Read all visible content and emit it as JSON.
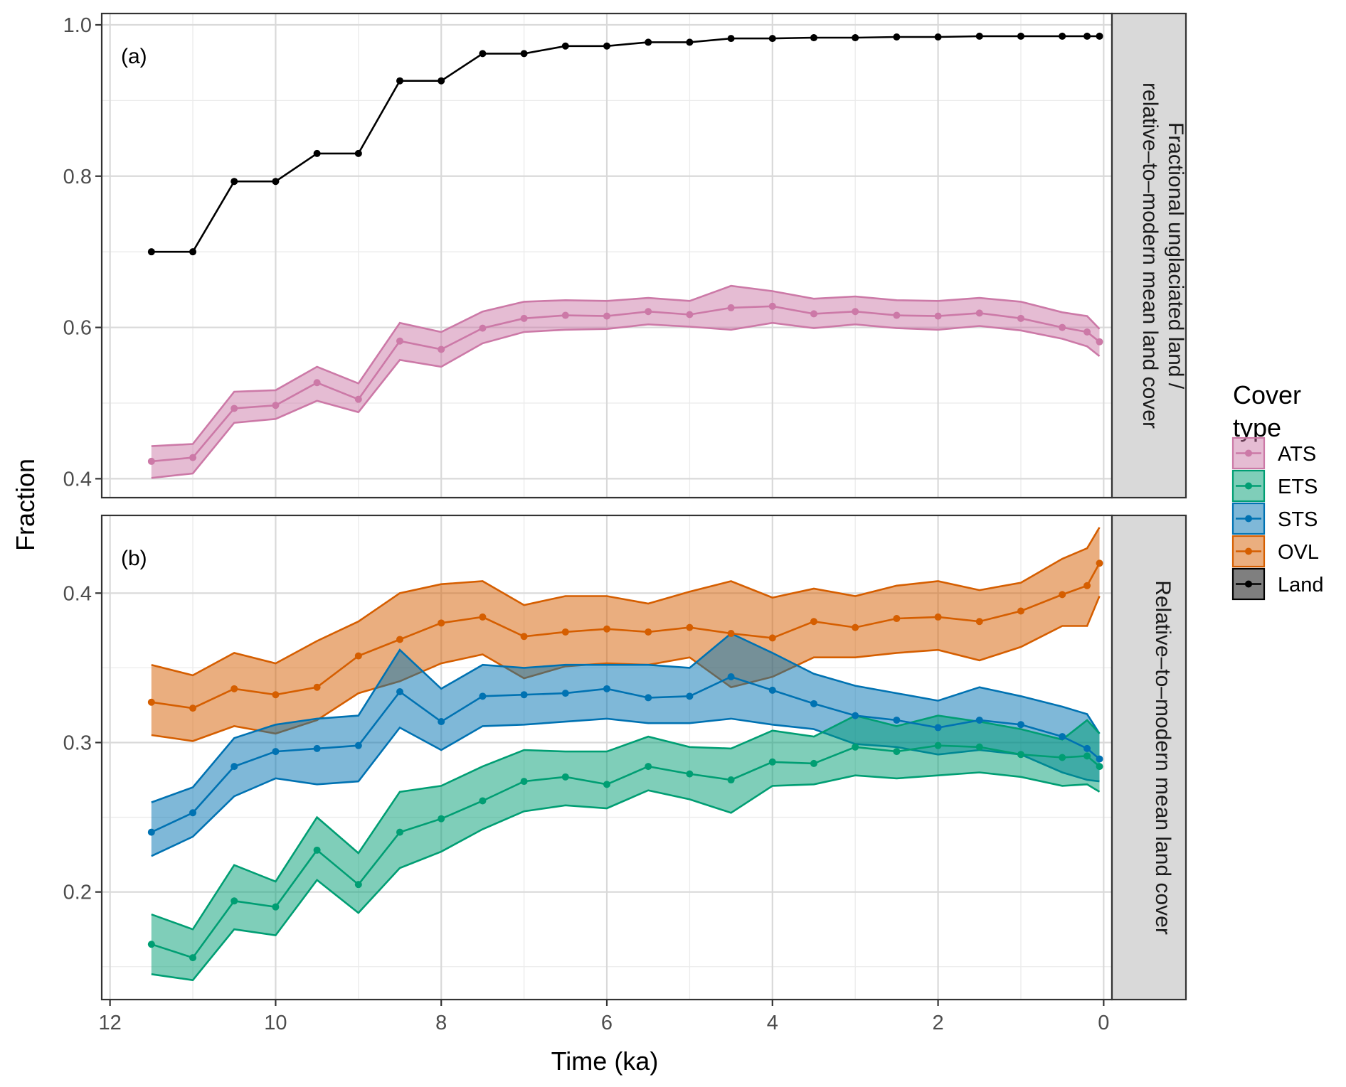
{
  "chart_data": {
    "type": "line",
    "xlabel": "Time (ka)",
    "ylabel": "Fraction",
    "x_ticks": [
      "12",
      "10",
      "8",
      "6",
      "4",
      "2",
      "0"
    ],
    "xlim": [
      12.1,
      -0.1
    ],
    "x_reversed": true,
    "grid": true,
    "legend": {
      "title_lines": [
        "Cover",
        "type"
      ],
      "placement": "right",
      "entries": [
        {
          "key": "ATS",
          "label": "ATS",
          "color": "#CC79A7"
        },
        {
          "key": "ETS",
          "label": "ETS",
          "color": "#009E73"
        },
        {
          "key": "STS",
          "label": "STS",
          "color": "#0072B2"
        },
        {
          "key": "OVL",
          "label": "OVL",
          "color": "#D55E00"
        },
        {
          "key": "Land",
          "label": "Land",
          "color": "#000000"
        }
      ]
    },
    "x": [
      11.5,
      11,
      10.5,
      10,
      9.5,
      9,
      8.5,
      8,
      7.5,
      7,
      6.5,
      6,
      5.5,
      5,
      4.5,
      4,
      3.5,
      3,
      2.5,
      2,
      1.5,
      1,
      0.5,
      0.2,
      0.05
    ],
    "panels": [
      {
        "tag": "(a)",
        "strip_lines": [
          "Fractional unglaciated land /",
          "relative–to–modern mean land cover"
        ],
        "ylim": [
          0.375,
          1.015
        ],
        "y_ticks": [
          {
            "v": 0.4,
            "label": "0.4"
          },
          {
            "v": 0.6,
            "label": "0.6"
          },
          {
            "v": 0.8,
            "label": "0.8"
          },
          {
            "v": 1.0,
            "label": "1.0"
          }
        ],
        "y_minor": [
          0.5,
          0.7,
          0.9
        ],
        "series": [
          {
            "name": "ATS",
            "mean": [
              0.423,
              0.428,
              0.493,
              0.497,
              0.527,
              0.505,
              0.582,
              0.571,
              0.599,
              0.612,
              0.616,
              0.615,
              0.621,
              0.617,
              0.626,
              0.628,
              0.618,
              0.621,
              0.616,
              0.615,
              0.619,
              0.612,
              0.6,
              0.594,
              0.581
            ],
            "lower": [
              0.401,
              0.407,
              0.474,
              0.479,
              0.503,
              0.488,
              0.557,
              0.548,
              0.579,
              0.594,
              0.597,
              0.598,
              0.604,
              0.601,
              0.597,
              0.606,
              0.599,
              0.604,
              0.599,
              0.597,
              0.602,
              0.596,
              0.585,
              0.575,
              0.562
            ],
            "upper": [
              0.443,
              0.446,
              0.515,
              0.517,
              0.548,
              0.526,
              0.606,
              0.594,
              0.621,
              0.634,
              0.636,
              0.635,
              0.639,
              0.635,
              0.655,
              0.648,
              0.638,
              0.641,
              0.636,
              0.635,
              0.639,
              0.634,
              0.62,
              0.615,
              0.598
            ]
          },
          {
            "name": "Land",
            "mean": [
              0.7,
              0.7,
              0.793,
              0.793,
              0.83,
              0.83,
              0.926,
              0.926,
              0.962,
              0.962,
              0.972,
              0.972,
              0.977,
              0.977,
              0.982,
              0.982,
              0.983,
              0.983,
              0.984,
              0.984,
              0.985,
              0.985,
              0.985,
              0.985,
              0.985
            ]
          }
        ]
      },
      {
        "tag": "(b)",
        "strip_lines": [
          "Relative–to–modern mean land cover"
        ],
        "ylim": [
          0.128,
          0.452
        ],
        "y_ticks": [
          {
            "v": 0.2,
            "label": "0.2"
          },
          {
            "v": 0.3,
            "label": "0.3"
          },
          {
            "v": 0.4,
            "label": "0.4"
          }
        ],
        "y_minor": [
          0.15,
          0.25,
          0.35
        ],
        "series": [
          {
            "name": "OVL",
            "mean": [
              0.327,
              0.323,
              0.336,
              0.332,
              0.337,
              0.358,
              0.369,
              0.38,
              0.384,
              0.371,
              0.374,
              0.376,
              0.374,
              0.377,
              0.373,
              0.37,
              0.381,
              0.377,
              0.383,
              0.384,
              0.381,
              0.388,
              0.399,
              0.405,
              0.42
            ],
            "lower": [
              0.305,
              0.301,
              0.311,
              0.306,
              0.315,
              0.333,
              0.341,
              0.353,
              0.359,
              0.343,
              0.351,
              0.353,
              0.352,
              0.357,
              0.337,
              0.344,
              0.357,
              0.357,
              0.36,
              0.362,
              0.355,
              0.364,
              0.378,
              0.378,
              0.398
            ],
            "upper": [
              0.352,
              0.345,
              0.36,
              0.353,
              0.368,
              0.381,
              0.4,
              0.406,
              0.408,
              0.392,
              0.398,
              0.398,
              0.393,
              0.401,
              0.408,
              0.397,
              0.403,
              0.398,
              0.405,
              0.408,
              0.402,
              0.407,
              0.423,
              0.43,
              0.444
            ]
          },
          {
            "name": "STS",
            "mean": [
              0.24,
              0.253,
              0.284,
              0.294,
              0.296,
              0.298,
              0.334,
              0.314,
              0.331,
              0.332,
              0.333,
              0.336,
              0.33,
              0.331,
              0.344,
              0.335,
              0.326,
              0.318,
              0.315,
              0.31,
              0.315,
              0.312,
              0.304,
              0.296,
              0.289
            ],
            "lower": [
              0.224,
              0.237,
              0.264,
              0.276,
              0.272,
              0.274,
              0.31,
              0.295,
              0.311,
              0.312,
              0.314,
              0.316,
              0.313,
              0.313,
              0.316,
              0.312,
              0.309,
              0.299,
              0.297,
              0.292,
              0.295,
              0.292,
              0.28,
              0.275,
              0.274
            ],
            "upper": [
              0.26,
              0.27,
              0.303,
              0.312,
              0.316,
              0.318,
              0.362,
              0.336,
              0.352,
              0.35,
              0.352,
              0.352,
              0.352,
              0.35,
              0.373,
              0.36,
              0.346,
              0.338,
              0.333,
              0.328,
              0.337,
              0.331,
              0.324,
              0.319,
              0.306
            ]
          },
          {
            "name": "ETS",
            "mean": [
              0.165,
              0.156,
              0.194,
              0.19,
              0.228,
              0.205,
              0.24,
              0.249,
              0.261,
              0.274,
              0.277,
              0.272,
              0.284,
              0.279,
              0.275,
              0.287,
              0.286,
              0.297,
              0.294,
              0.298,
              0.297,
              0.292,
              0.29,
              0.291,
              0.284
            ],
            "lower": [
              0.145,
              0.141,
              0.175,
              0.171,
              0.208,
              0.186,
              0.216,
              0.227,
              0.242,
              0.254,
              0.258,
              0.256,
              0.268,
              0.262,
              0.253,
              0.271,
              0.272,
              0.278,
              0.276,
              0.278,
              0.28,
              0.277,
              0.271,
              0.272,
              0.267
            ],
            "upper": [
              0.185,
              0.175,
              0.218,
              0.207,
              0.25,
              0.226,
              0.267,
              0.271,
              0.284,
              0.295,
              0.294,
              0.294,
              0.304,
              0.297,
              0.296,
              0.308,
              0.304,
              0.318,
              0.311,
              0.318,
              0.314,
              0.309,
              0.302,
              0.315,
              0.306
            ]
          }
        ]
      }
    ]
  }
}
